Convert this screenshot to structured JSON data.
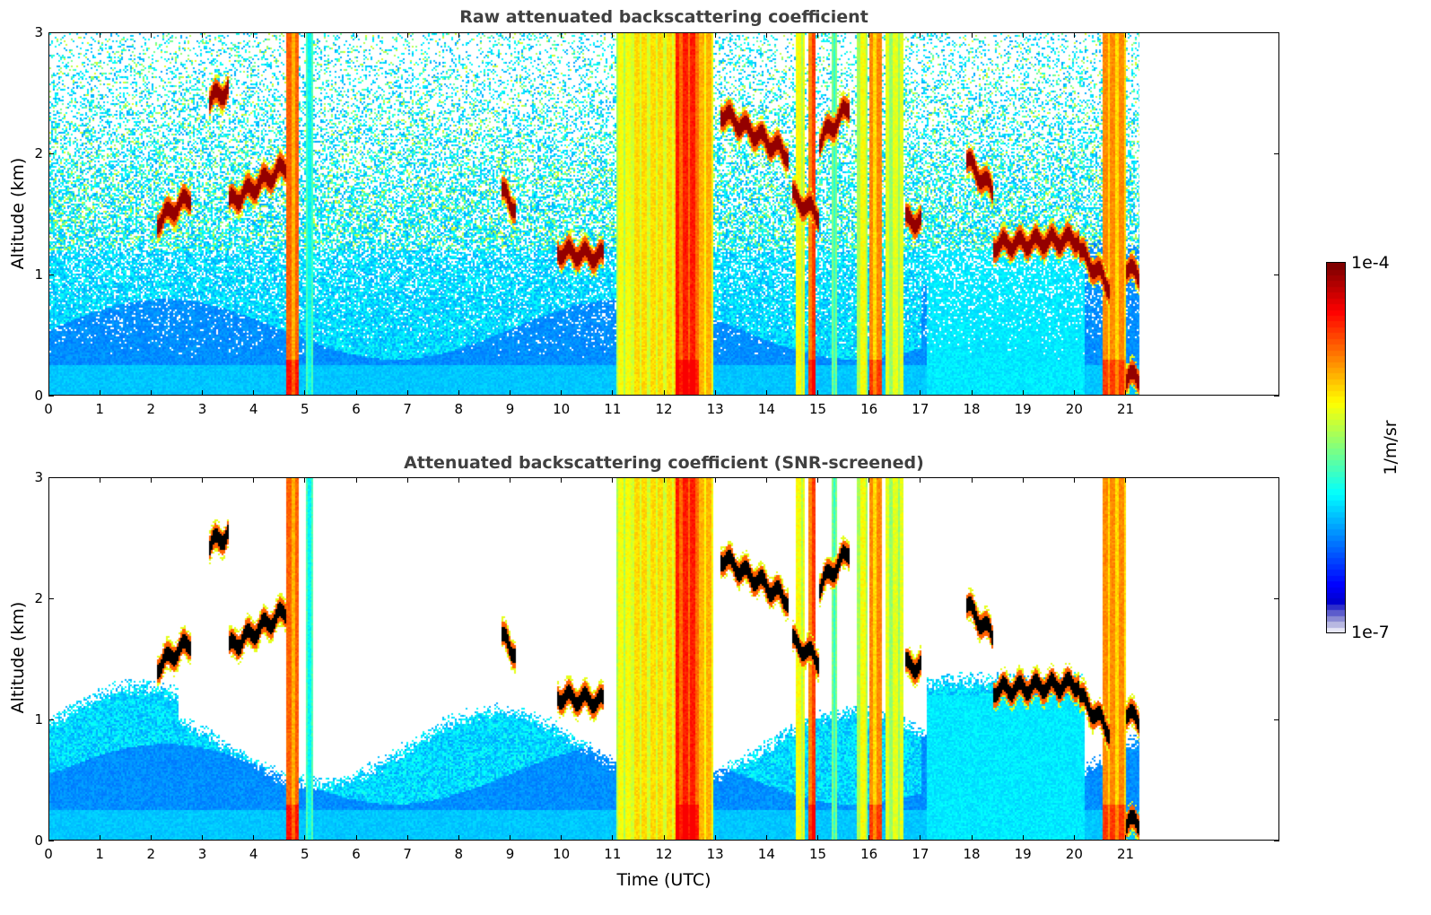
{
  "chart_data": [
    {
      "type": "heatmap",
      "title": "Raw attenuated backscattering coefficient",
      "xlabel": "",
      "ylabel": "Altitude (km)",
      "xlim": [
        0,
        24
      ],
      "ylim": [
        0,
        3
      ],
      "x_ticks": [
        "0",
        "1",
        "2",
        "3",
        "4",
        "5",
        "6",
        "7",
        "8",
        "9",
        "10",
        "11",
        "12",
        "13",
        "14",
        "15",
        "16",
        "17",
        "18",
        "19",
        "20",
        "21"
      ],
      "y_ticks": [
        "0",
        "1",
        "2",
        "3"
      ],
      "data_end_time": 21.3,
      "screened": false
    },
    {
      "type": "heatmap",
      "title": "Attenuated backscattering coefficient (SNR-screened)",
      "xlabel": "Time (UTC)",
      "ylabel": "Altitude (km)",
      "xlim": [
        0,
        24
      ],
      "ylim": [
        0,
        3
      ],
      "x_ticks": [
        "0",
        "1",
        "2",
        "3",
        "4",
        "5",
        "6",
        "7",
        "8",
        "9",
        "10",
        "11",
        "12",
        "13",
        "14",
        "15",
        "16",
        "17",
        "18",
        "19",
        "20",
        "21"
      ],
      "y_ticks": [
        "0",
        "1",
        "2",
        "3"
      ],
      "data_end_time": 21.3,
      "screened": true
    }
  ],
  "colorbar": {
    "label": "1/m/sr",
    "max_label": "1e-4",
    "min_label": "1e-7",
    "range": [
      1e-07,
      0.0001
    ],
    "scale": "log",
    "colormap": "jet"
  },
  "features": {
    "precip_columns": [
      {
        "t0": 4.6,
        "t1": 4.85,
        "level": 0.78
      },
      {
        "t0": 5.0,
        "t1": 5.15,
        "level": 0.45
      },
      {
        "t0": 11.05,
        "t1": 11.35,
        "level": 0.62
      },
      {
        "t0": 11.35,
        "t1": 12.2,
        "level": 0.66
      },
      {
        "t0": 12.2,
        "t1": 12.65,
        "level": 0.85
      },
      {
        "t0": 12.65,
        "t1": 12.95,
        "level": 0.7
      },
      {
        "t0": 14.55,
        "t1": 14.75,
        "level": 0.62
      },
      {
        "t0": 14.8,
        "t1": 14.95,
        "level": 0.82
      },
      {
        "t0": 15.25,
        "t1": 15.35,
        "level": 0.5
      },
      {
        "t0": 15.75,
        "t1": 15.95,
        "level": 0.62
      },
      {
        "t0": 16.0,
        "t1": 16.25,
        "level": 0.74
      },
      {
        "t0": 16.3,
        "t1": 16.65,
        "level": 0.6
      },
      {
        "t0": 20.55,
        "t1": 21.0,
        "level": 0.74
      }
    ],
    "cloud_layers": [
      {
        "t0": 2.1,
        "t1": 2.75,
        "a0": 1.45,
        "a1": 1.65
      },
      {
        "t0": 3.5,
        "t1": 4.6,
        "a0": 1.6,
        "a1": 1.9
      },
      {
        "t0": 3.1,
        "t1": 3.5,
        "a0": 2.45,
        "a1": 2.55
      },
      {
        "t0": 8.8,
        "t1": 9.1,
        "a0": 1.7,
        "a1": 1.55
      },
      {
        "t0": 9.9,
        "t1": 10.8,
        "a0": 1.2,
        "a1": 1.15
      },
      {
        "t0": 13.1,
        "t1": 14.4,
        "a0": 2.35,
        "a1": 2.0
      },
      {
        "t0": 14.5,
        "t1": 15.0,
        "a0": 1.65,
        "a1": 1.5
      },
      {
        "t0": 15.0,
        "t1": 15.6,
        "a0": 2.1,
        "a1": 2.4
      },
      {
        "t0": 16.7,
        "t1": 17.0,
        "a0": 1.45,
        "a1": 1.45
      },
      {
        "t0": 17.9,
        "t1": 18.4,
        "a0": 1.95,
        "a1": 1.7
      },
      {
        "t0": 18.4,
        "t1": 20.1,
        "a0": 1.25,
        "a1": 1.3
      },
      {
        "t0": 20.1,
        "t1": 20.7,
        "a0": 1.2,
        "a1": 0.9
      },
      {
        "t0": 21.0,
        "t1": 21.3,
        "a0": 0.15,
        "a1": 0.15
      },
      {
        "t0": 21.0,
        "t1": 21.3,
        "a0": 1.05,
        "a1": 1.0
      }
    ]
  }
}
